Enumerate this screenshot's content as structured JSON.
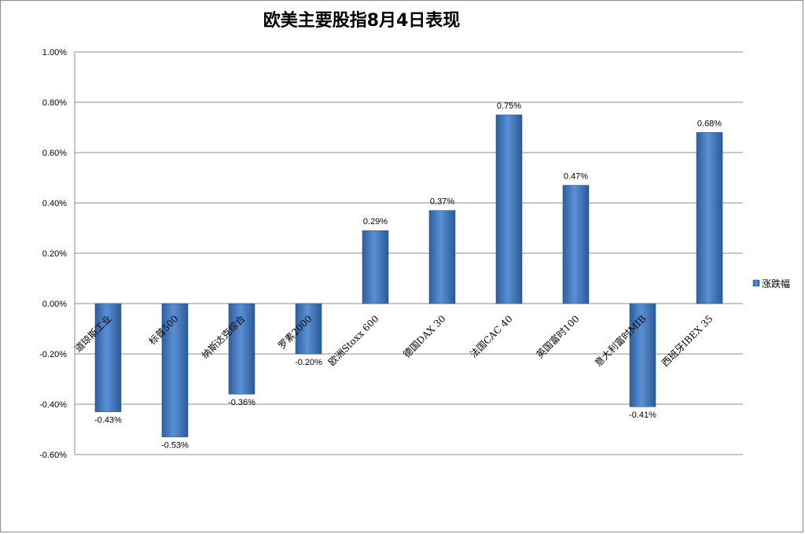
{
  "chart_data": {
    "type": "bar",
    "title": "欧美主要股指8月4日表现",
    "categories": [
      "道琼斯工业",
      "标普500",
      "纳斯达克综合",
      "罗素2000",
      "欧洲Stoxx 600",
      "德国DAX 30",
      "法国CAC 40",
      "英国富时100",
      "意大利富时MIB",
      "西班牙IBEX 35"
    ],
    "series": [
      {
        "name": "涨跌幅",
        "values": [
          -0.43,
          -0.53,
          -0.36,
          -0.2,
          0.29,
          0.37,
          0.75,
          0.47,
          -0.41,
          0.68
        ]
      }
    ],
    "data_labels": [
      "-0.43%",
      "-0.53%",
      "-0.36%",
      "-0.20%",
      "0.29%",
      "0.37%",
      "0.75%",
      "0.47%",
      "-0.41%",
      "0.68%"
    ],
    "ylim": [
      -0.6,
      1.0
    ],
    "yticks": [
      1.0,
      0.8,
      0.6,
      0.4,
      0.2,
      0.0,
      -0.2,
      -0.4,
      -0.6
    ],
    "ytick_labels": [
      "1.00%",
      "0.80%",
      "0.60%",
      "0.40%",
      "0.20%",
      "0.00%",
      "-0.20%",
      "-0.40%",
      "-0.60%"
    ],
    "grid": true,
    "legend_position": "right",
    "bar_color": "#4a7fc1"
  }
}
